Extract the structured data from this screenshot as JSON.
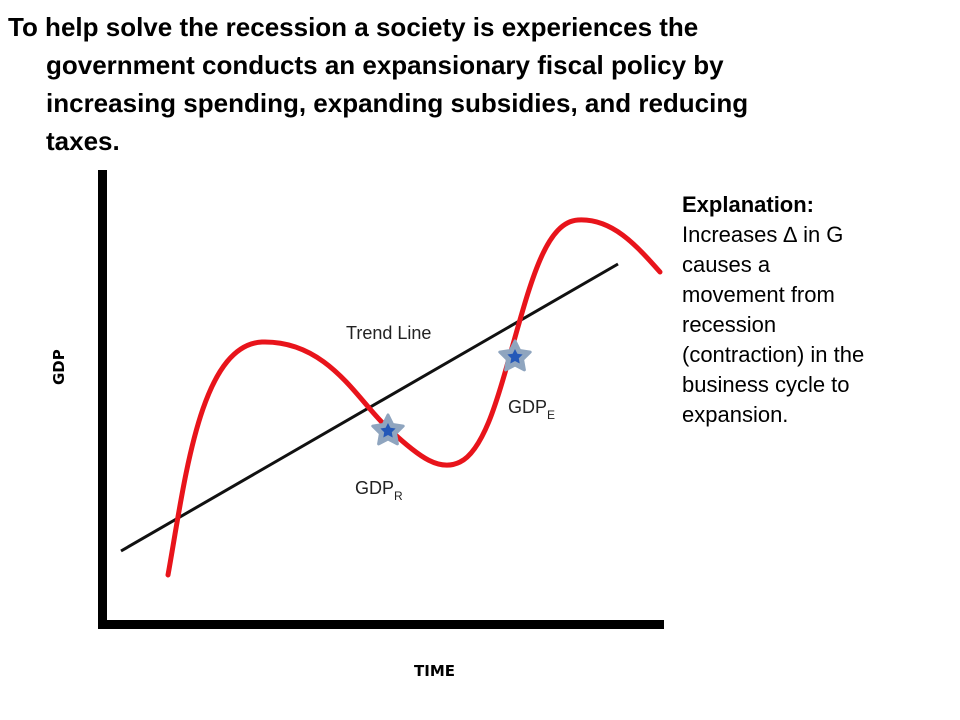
{
  "heading": {
    "line1": "To help solve the recession a society is experiences the",
    "line2": "government conducts an expansionary fiscal policy by",
    "line3": "increasing spending, expanding subsidies, and reducing",
    "line4": "taxes."
  },
  "explanation": {
    "title": "Explanation:",
    "body": "Increases ∆ in G\ncauses a\nmovement from\nrecession\n(contraction) in the\nbusiness cycle to\nexpansion."
  },
  "diagram": {
    "y_axis_label": "GDP",
    "x_axis_label": "TIME",
    "trend_line_label": "Trend Line",
    "gdp_r": {
      "main": "GDP",
      "sub": "R"
    },
    "gdp_e": {
      "main": "GDP",
      "sub": "E"
    },
    "colors": {
      "curve": "#e8141b",
      "trend": "#111111",
      "axes": "#000000",
      "star": "#2458b8",
      "star_outline": "#8fa5bf"
    }
  }
}
